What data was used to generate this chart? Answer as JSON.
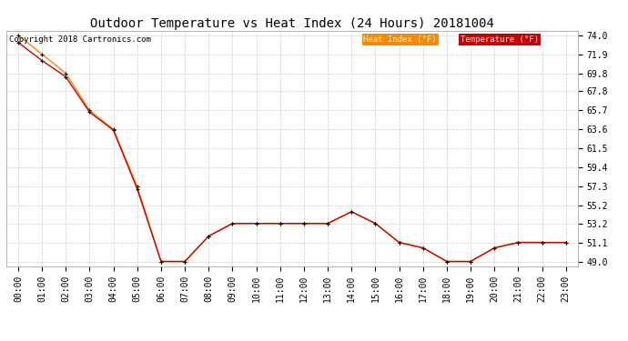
{
  "title": "Outdoor Temperature vs Heat Index (24 Hours) 20181004",
  "copyright": "Copyright 2018 Cartronics.com",
  "background_color": "#ffffff",
  "plot_bg_color": "#ffffff",
  "grid_color": "#cccccc",
  "hours": [
    "00:00",
    "01:00",
    "02:00",
    "03:00",
    "04:00",
    "05:00",
    "06:00",
    "07:00",
    "08:00",
    "09:00",
    "10:00",
    "11:00",
    "12:00",
    "13:00",
    "14:00",
    "15:00",
    "16:00",
    "17:00",
    "18:00",
    "19:00",
    "20:00",
    "21:00",
    "22:00",
    "23:00"
  ],
  "temperature": [
    73.2,
    71.2,
    69.4,
    65.5,
    63.5,
    57.0,
    49.0,
    49.0,
    51.8,
    53.2,
    53.2,
    53.2,
    53.2,
    53.2,
    54.5,
    53.2,
    51.1,
    50.5,
    49.0,
    49.0,
    50.5,
    51.1,
    51.1,
    51.1
  ],
  "heat_index": [
    74.0,
    71.9,
    69.8,
    65.7,
    63.6,
    57.3,
    49.0,
    49.0,
    51.8,
    53.2,
    53.2,
    53.2,
    53.2,
    53.2,
    54.5,
    53.2,
    51.1,
    50.5,
    49.0,
    49.0,
    50.5,
    51.1,
    51.1,
    51.1
  ],
  "ylim_min": 48.5,
  "ylim_max": 74.5,
  "yticks": [
    49.0,
    51.1,
    53.2,
    55.2,
    57.3,
    59.4,
    61.5,
    63.6,
    65.7,
    67.8,
    69.8,
    71.9,
    74.0
  ],
  "temp_color": "#cc0000",
  "heat_index_color": "#ff8800",
  "marker_color": "#000000",
  "legend_heat_bg": "#ff8800",
  "legend_temp_bg": "#cc0000",
  "legend_text_color": "#ffffff",
  "title_fontsize": 10,
  "tick_fontsize": 7,
  "copyright_fontsize": 6.5
}
